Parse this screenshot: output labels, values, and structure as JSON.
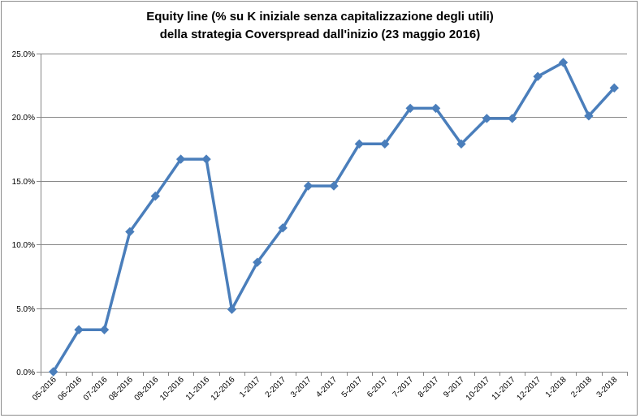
{
  "chart_data": {
    "type": "line",
    "title_line1": "Equity line (% su K iniziale senza capitalizzazione degli utili)",
    "title_line2": "della strategia Coverspread dall'inizio (23 maggio 2016)",
    "categories": [
      "05-2016",
      "06-2016",
      "07-2016",
      "08-2016",
      "09-2016",
      "10-2016",
      "11-2016",
      "12-2016",
      "1-2017",
      "2-2017",
      "3-2017",
      "4-2017",
      "5-2017",
      "6-2017",
      "7-2017",
      "8-2017",
      "9-2017",
      "10-2017",
      "11-2017",
      "12-2017",
      "1-2018",
      "2-2018",
      "3-2018"
    ],
    "values": [
      0.0,
      3.3,
      3.3,
      11.0,
      13.8,
      16.7,
      16.7,
      4.9,
      8.6,
      11.3,
      14.6,
      14.6,
      17.9,
      17.9,
      20.7,
      20.7,
      17.9,
      19.9,
      19.9,
      23.2,
      24.3,
      20.1,
      22.3
    ],
    "ylim": [
      0,
      25
    ],
    "yticks": [
      "0.0%",
      "5.0%",
      "10.0%",
      "15.0%",
      "20.0%",
      "25.0%"
    ],
    "grid": true,
    "legend": "none",
    "line_color": "#4a7ebb",
    "grid_color": "#868686"
  }
}
